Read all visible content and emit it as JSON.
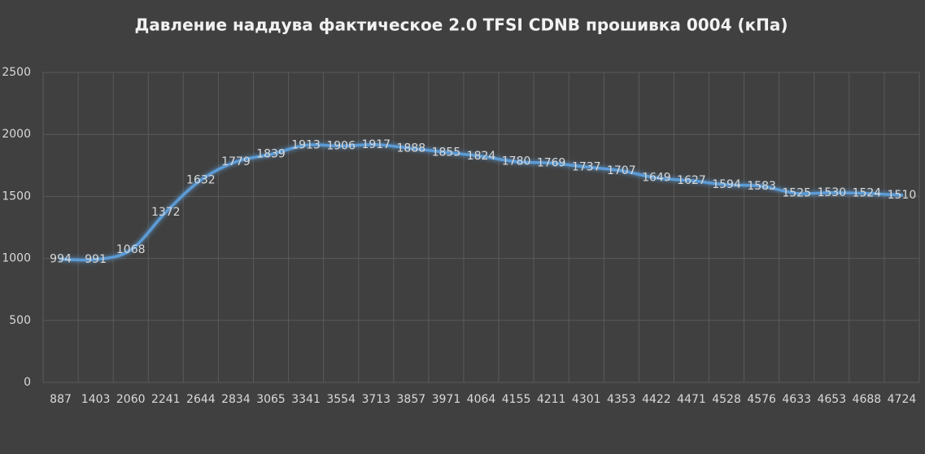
{
  "chart_data": {
    "type": "line",
    "title": "Давление наддува фактическое 2.0 TFSI CDNB прошивка 0004 (кПа)",
    "categories": [
      "887",
      "1403",
      "2060",
      "2241",
      "2644",
      "2834",
      "3065",
      "3341",
      "3554",
      "3713",
      "3857",
      "3971",
      "4064",
      "4155",
      "4211",
      "4301",
      "4353",
      "4422",
      "4471",
      "4528",
      "4576",
      "4633",
      "4653",
      "4688",
      "4724"
    ],
    "values": [
      994,
      991,
      1068,
      1372,
      1632,
      1779,
      1839,
      1913,
      1906,
      1917,
      1888,
      1855,
      1824,
      1780,
      1769,
      1737,
      1707,
      1649,
      1627,
      1594,
      1583,
      1525,
      1530,
      1524,
      1510
    ],
    "color": "#5b9bd5",
    "ylim": [
      0,
      2500
    ],
    "yticks": [
      0,
      500,
      1000,
      1500,
      2000,
      2500
    ],
    "grid": true
  }
}
